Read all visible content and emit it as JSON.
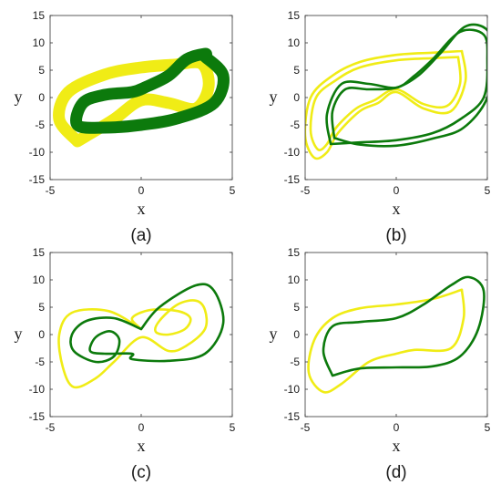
{
  "chart_data": [
    {
      "panel": "a",
      "type": "line",
      "caption": "(a)",
      "xlabel": "x",
      "ylabel": "y",
      "xlim": [
        -5,
        5
      ],
      "ylim": [
        -15,
        15
      ],
      "xticks": [
        -5,
        0,
        5
      ],
      "yticks": [
        15,
        10,
        5,
        0,
        -5,
        -10,
        -15
      ],
      "series": [
        {
          "color": "#f0ec16",
          "thick": true,
          "points": [
            [
              -3.5,
              -8
            ],
            [
              -4.5,
              -4
            ],
            [
              -4,
              1
            ],
            [
              -2,
              4.2
            ],
            [
              0,
              5.5
            ],
            [
              1.8,
              6
            ],
            [
              3.3,
              6.2
            ],
            [
              3.7,
              2
            ],
            [
              3,
              -2
            ],
            [
              1.5,
              -1
            ],
            [
              0,
              -0.5
            ],
            [
              -1.5,
              -4
            ],
            [
              -3,
              -7
            ],
            [
              -3.5,
              -8
            ]
          ]
        },
        {
          "color": "#0c7a0c",
          "thick": true,
          "points": [
            [
              3.5,
              7.5
            ],
            [
              4.5,
              4
            ],
            [
              4,
              -1
            ],
            [
              2,
              -3.8
            ],
            [
              0,
              -5
            ],
            [
              -2,
              -5.5
            ],
            [
              -3.5,
              -5
            ],
            [
              -3.2,
              -1
            ],
            [
              -2,
              0.5
            ],
            [
              -0.5,
              1
            ],
            [
              0.3,
              2
            ],
            [
              1.5,
              4
            ],
            [
              2.5,
              7
            ],
            [
              3.5,
              8
            ],
            [
              3.5,
              7.5
            ]
          ]
        }
      ]
    },
    {
      "panel": "b",
      "type": "line",
      "caption": "(b)",
      "xlabel": "x",
      "ylabel": "y",
      "xlim": [
        -5,
        5
      ],
      "ylim": [
        -15,
        15
      ],
      "xticks": [
        -5,
        0,
        5
      ],
      "yticks": [
        15,
        10,
        5,
        0,
        -5,
        -10,
        -15
      ],
      "series": [
        {
          "color": "#f0ec16",
          "points": [
            [
              3.6,
              8.5
            ],
            [
              3.8,
              3
            ],
            [
              3,
              -2.5
            ],
            [
              1.5,
              -2
            ],
            [
              0,
              1
            ],
            [
              -1,
              -1
            ],
            [
              -2,
              -2.5
            ],
            [
              -3.2,
              -6.5
            ],
            [
              -3.8,
              -10
            ],
            [
              -4.5,
              -11
            ],
            [
              -5,
              -7
            ],
            [
              -4.7,
              0
            ],
            [
              -3.5,
              4
            ],
            [
              -2,
              6.5
            ],
            [
              0,
              7.8
            ],
            [
              2,
              8.2
            ],
            [
              3.6,
              8.5
            ]
          ]
        },
        {
          "color": "#f0ec16",
          "points": [
            [
              3.4,
              7.4
            ],
            [
              3.5,
              2.5
            ],
            [
              2.8,
              -1.5
            ],
            [
              1.5,
              -1.2
            ],
            [
              0,
              1.5
            ],
            [
              -1.2,
              -0.5
            ],
            [
              -2.2,
              -2
            ],
            [
              -3.3,
              -5.5
            ],
            [
              -3.8,
              -8.5
            ],
            [
              -4.3,
              -9.5
            ],
            [
              -4.7,
              -6
            ],
            [
              -4.4,
              0
            ],
            [
              -3.3,
              3.2
            ],
            [
              -2,
              5.5
            ],
            [
              0,
              6.8
            ],
            [
              2,
              7.2
            ],
            [
              3.4,
              7.4
            ]
          ]
        },
        {
          "color": "#0c7a0c",
          "points": [
            [
              -3.6,
              -8.5
            ],
            [
              -3.8,
              -3
            ],
            [
              -3,
              2.5
            ],
            [
              -1.5,
              2.5
            ],
            [
              0,
              1.8
            ],
            [
              1,
              4
            ],
            [
              2,
              7
            ],
            [
              3.5,
              12
            ],
            [
              4.8,
              11.5
            ],
            [
              5,
              7
            ],
            [
              4.8,
              0
            ],
            [
              3.5,
              -4
            ],
            [
              2,
              -6.5
            ],
            [
              0,
              -7.8
            ],
            [
              -2,
              -8.2
            ],
            [
              -3.6,
              -8.5
            ]
          ]
        },
        {
          "color": "#0c7a0c",
          "points": [
            [
              -3.4,
              -7.4
            ],
            [
              -3.5,
              -2.5
            ],
            [
              -2.8,
              1.5
            ],
            [
              -1.5,
              1.5
            ],
            [
              0,
              1.8
            ],
            [
              1.2,
              4
            ],
            [
              2.4,
              8
            ],
            [
              3.8,
              13
            ],
            [
              5,
              12.3
            ],
            [
              5.2,
              7.5
            ],
            [
              5,
              0
            ],
            [
              3.7,
              -5.5
            ],
            [
              2,
              -7.5
            ],
            [
              0,
              -8.8
            ],
            [
              -2,
              -8.6
            ],
            [
              -3.4,
              -7.4
            ]
          ]
        }
      ]
    },
    {
      "panel": "c",
      "type": "line",
      "caption": "(c)",
      "xlabel": "x",
      "ylabel": "y",
      "xlim": [
        -5,
        5
      ],
      "ylim": [
        -15,
        15
      ],
      "xticks": [
        -5,
        0,
        5
      ],
      "yticks": [
        15,
        10,
        5,
        0,
        -5,
        -10,
        -15
      ],
      "series": [
        {
          "color": "#f0ec16",
          "points": [
            [
              0,
              1
            ],
            [
              -1.8,
              4.3
            ],
            [
              -3.8,
              4
            ],
            [
              -4.5,
              0
            ],
            [
              -4.3,
              -6
            ],
            [
              -3.7,
              -9.6
            ],
            [
              -2.5,
              -8
            ],
            [
              -1.5,
              -5
            ],
            [
              0,
              -0.5
            ],
            [
              1.5,
              -3
            ],
            [
              2.5,
              -2
            ],
            [
              3.5,
              1
            ],
            [
              3.5,
              4.5
            ],
            [
              3,
              6.2
            ],
            [
              2,
              5.5
            ],
            [
              1,
              2.5
            ],
            [
              0.8,
              0.5
            ],
            [
              1.5,
              0
            ],
            [
              2.4,
              1
            ],
            [
              2.7,
              3
            ],
            [
              2,
              4.3
            ],
            [
              0.5,
              4.5
            ],
            [
              -0.5,
              3
            ],
            [
              0,
              1
            ]
          ]
        },
        {
          "color": "#0c7a0c",
          "points": [
            [
              0,
              1
            ],
            [
              -1.5,
              3
            ],
            [
              -3,
              2.5
            ],
            [
              -3.8,
              0
            ],
            [
              -3.7,
              -3
            ],
            [
              -2.5,
              -5
            ],
            [
              -1.5,
              -4
            ],
            [
              -1.2,
              -1
            ],
            [
              -1.7,
              0.6
            ],
            [
              -2.5,
              -0.5
            ],
            [
              -2.8,
              -3
            ],
            [
              -2,
              -3.5
            ],
            [
              -0.5,
              -3.5
            ],
            [
              -0.5,
              -4.5
            ],
            [
              1.5,
              -4.8
            ],
            [
              3.5,
              -3.5
            ],
            [
              4.5,
              2
            ],
            [
              4,
              8
            ],
            [
              3,
              9
            ],
            [
              1,
              5
            ],
            [
              0,
              1
            ]
          ]
        }
      ]
    },
    {
      "panel": "d",
      "type": "line",
      "caption": "(d)",
      "xlabel": "x",
      "ylabel": "y",
      "xlim": [
        -5,
        5
      ],
      "ylim": [
        -15,
        15
      ],
      "xticks": [
        -5,
        0,
        5
      ],
      "yticks": [
        15,
        10,
        5,
        0,
        -5,
        -10,
        -15
      ],
      "series": [
        {
          "color": "#f0ec16",
          "points": [
            [
              3.6,
              8.2
            ],
            [
              3.7,
              3
            ],
            [
              3,
              -2.5
            ],
            [
              1,
              -2.8
            ],
            [
              0,
              -3.5
            ],
            [
              -1.5,
              -5
            ],
            [
              -3,
              -9
            ],
            [
              -4,
              -10.5
            ],
            [
              -4.8,
              -7
            ],
            [
              -4.5,
              -1
            ],
            [
              -3.5,
              3
            ],
            [
              -2,
              4.8
            ],
            [
              0,
              5.5
            ],
            [
              2,
              6.5
            ],
            [
              3.6,
              8.2
            ]
          ]
        },
        {
          "color": "#0c7a0c",
          "points": [
            [
              -3.5,
              -7.5
            ],
            [
              -4,
              -3
            ],
            [
              -3.5,
              1.5
            ],
            [
              -2,
              2.3
            ],
            [
              0,
              3
            ],
            [
              1.5,
              5.5
            ],
            [
              3,
              9
            ],
            [
              4,
              10.5
            ],
            [
              4.8,
              8
            ],
            [
              4.5,
              1
            ],
            [
              3.5,
              -4
            ],
            [
              2,
              -5.8
            ],
            [
              0,
              -6
            ],
            [
              -2,
              -6.2
            ],
            [
              -3.5,
              -7.5
            ]
          ]
        }
      ]
    }
  ]
}
